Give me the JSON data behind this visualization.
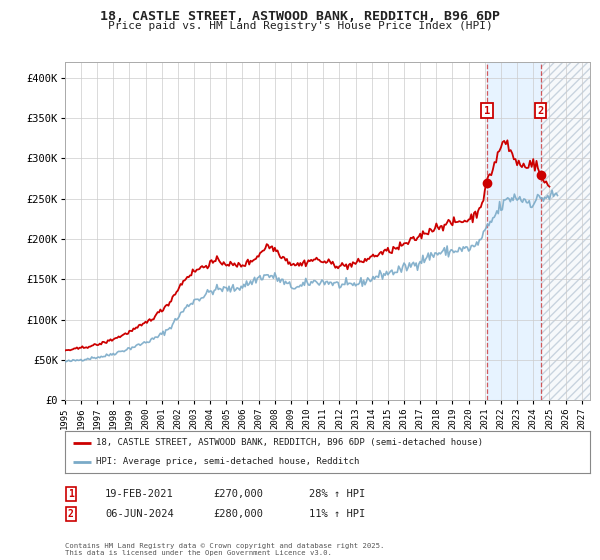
{
  "title_line1": "18, CASTLE STREET, ASTWOOD BANK, REDDITCH, B96 6DP",
  "title_line2": "Price paid vs. HM Land Registry's House Price Index (HPI)",
  "ylim": [
    0,
    420000
  ],
  "yticks": [
    0,
    50000,
    100000,
    150000,
    200000,
    250000,
    300000,
    350000,
    400000
  ],
  "ytick_labels": [
    "£0",
    "£50K",
    "£100K",
    "£150K",
    "£200K",
    "£250K",
    "£300K",
    "£350K",
    "£400K"
  ],
  "background_color": "#ffffff",
  "plot_bg_color": "#ffffff",
  "grid_color": "#cccccc",
  "property_color": "#cc0000",
  "hpi_color": "#7aaac8",
  "marker1_x": 2021.13,
  "marker1_y": 270000,
  "marker2_x": 2024.45,
  "marker2_y": 280000,
  "marker1_label": "19-FEB-2021",
  "marker1_price": "£270,000",
  "marker1_hpi": "28% ↑ HPI",
  "marker2_label": "06-JUN-2024",
  "marker2_price": "£280,000",
  "marker2_hpi": "11% ↑ HPI",
  "legend_prop_label": "18, CASTLE STREET, ASTWOOD BANK, REDDITCH, B96 6DP (semi-detached house)",
  "legend_hpi_label": "HPI: Average price, semi-detached house, Redditch",
  "footnote": "Contains HM Land Registry data © Crown copyright and database right 2025.\nThis data is licensed under the Open Government Licence v3.0.",
  "shade_between_start": 2021.13,
  "shade_between_end": 2024.45,
  "hatch_start": 2024.45,
  "hatch_end": 2027.5,
  "xmin": 1995.0,
  "xmax": 2027.5
}
